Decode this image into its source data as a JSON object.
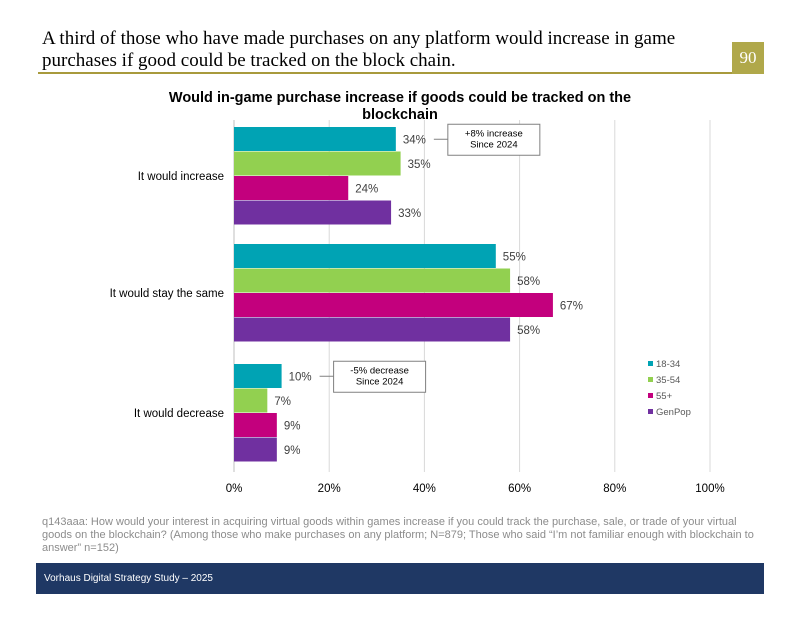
{
  "slide": {
    "title": "A third of those who have made purchases on any platform would increase in game purchases if good could be tracked on the block chain.",
    "page_number": "90"
  },
  "chart_data": {
    "type": "bar",
    "orientation": "horizontal",
    "title_lines": [
      "Would in-game purchase increase if goods could be tracked on the",
      "blockchain"
    ],
    "categories": [
      "It would increase",
      "It would stay the same",
      "It would decrease"
    ],
    "series": [
      {
        "name": "18-34",
        "color": "#00a3b4",
        "values": [
          34,
          55,
          10
        ]
      },
      {
        "name": "35-54",
        "color": "#92d050",
        "values": [
          35,
          58,
          7
        ]
      },
      {
        "name": "55+",
        "color": "#c3007d",
        "values": [
          24,
          67,
          9
        ]
      },
      {
        "name": "GenPop",
        "color": "#7030a0",
        "values": [
          33,
          58,
          9
        ]
      }
    ],
    "value_suffix": "%",
    "xlim": [
      0,
      100
    ],
    "xticks": [
      0,
      20,
      40,
      60,
      80,
      100
    ],
    "tick_labels": [
      "0%",
      "20%",
      "40%",
      "60%",
      "80%",
      "100%"
    ],
    "grid": true,
    "legend_position": "right",
    "annotations": [
      {
        "category_index": 0,
        "series_index": 0,
        "lines": [
          "+8% increase",
          "Since 2024"
        ]
      },
      {
        "category_index": 2,
        "series_index": 0,
        "lines": [
          "-5% decrease",
          "Since 2024"
        ]
      }
    ]
  },
  "note": "q143aaa: How would your interest in acquiring virtual goods within games increase if you could track the purchase, sale, or trade of your virtual goods on the blockchain? (Among those who make purchases on any platform; N=879; Those who said “I’m not familiar enough with blockchain to answer” n=152)",
  "footer": {
    "text": "Vorhaus Digital Strategy Study – 2025"
  }
}
